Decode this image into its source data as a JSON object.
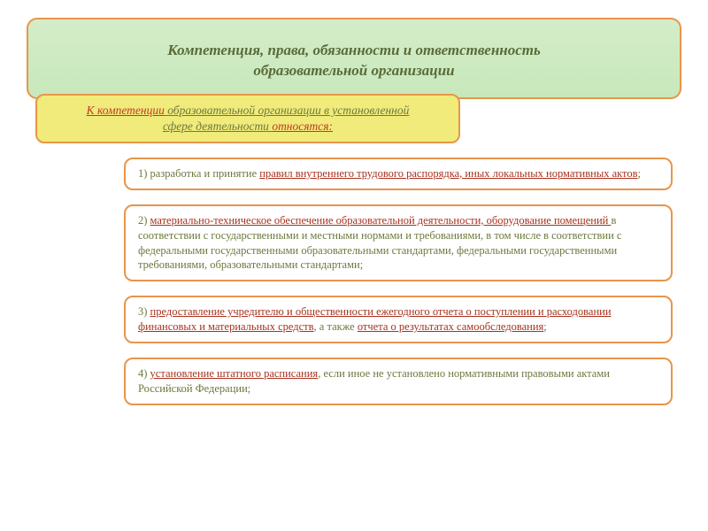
{
  "colors": {
    "title_bg": "#d4edc9",
    "title_border": "#e8954a",
    "title_text": "#5a6b3a",
    "subtitle_bg": "#f0eb7a",
    "subtitle_lead": "#c0392b",
    "subtitle_rest": "#6b7a3e",
    "item_border": "#e8954a",
    "item_bg": "#ffffff",
    "red_text": "#a8321e",
    "green_text": "#6b7a3e"
  },
  "title": {
    "line1": "Компетенция, права, обязанности и ответственность",
    "line2": "образовательной организации"
  },
  "subtitle": {
    "lead": "К компетенции",
    "rest1": " образовательной организации в установленной",
    "rest2": "сфере деятельности ",
    "tail": "относятся:"
  },
  "items": [
    {
      "num": "1)  ",
      "pre": "разработка  и  принятие ",
      "ul": "правил   внутреннего  трудового  распорядка,  иных локальных  нормативных  актов",
      "post": ";"
    },
    {
      "num": "2) ",
      "ul": "материально-техническое обеспечение образовательной деятельности, оборудование помещений ",
      "post": "в соответствии с государственными и местными нормами и требованиями, в том числе в соответствии с федеральными государственными образовательными стандартами, федеральными государственными требованиями, образовательными стандартами;"
    },
    {
      "num": "3) ",
      "ul": "предоставление учредителю и общественности ежегодного отчета о поступлении и расходовании финансовых и материальных средств",
      "mid": ", а также ",
      "ul2": "отчета о результатах самообследования",
      "post": ";"
    },
    {
      "num": "4) ",
      "ul": "установление штатного расписания",
      "post": ", если иное не установлено нормативными правовыми актами Российской Федерации;"
    }
  ]
}
